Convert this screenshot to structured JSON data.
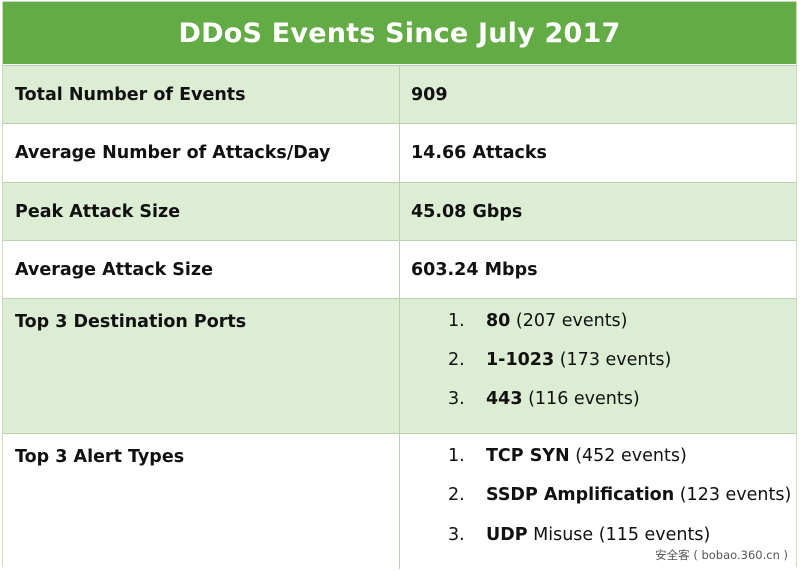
{
  "title": "DDoS Events Since July 2017",
  "rows": [
    {
      "label": "Total Number of Events",
      "value": "909"
    },
    {
      "label": "Average Number of Attacks/Day",
      "value": "14.66 Attacks"
    },
    {
      "label": "Peak Attack Size",
      "value": "45.08 Gbps"
    },
    {
      "label": "Average Attack Size",
      "value": "603.24 Mbps"
    }
  ],
  "ports": {
    "label": "Top 3 Destination Ports",
    "items": [
      {
        "num": "1.",
        "name": "80",
        "detail": " (207 events)"
      },
      {
        "num": "2.",
        "name": "1-1023",
        "detail": " (173 events)"
      },
      {
        "num": "3.",
        "name": "443",
        "detail": " (116 events)"
      }
    ]
  },
  "alerts": {
    "label": "Top 3 Alert Types",
    "items": [
      {
        "num": "1.",
        "name": "TCP SYN",
        "detail": " (452 events)"
      },
      {
        "num": "2.",
        "name": "SSDP Amplification",
        "detail": " (123 events)"
      },
      {
        "num": "3.",
        "name": "UDP",
        "detail": " Misuse (115 events)"
      }
    ]
  },
  "watermark": "安全客 ( bobao.360.cn )",
  "colors": {
    "header_green": "#62ab45",
    "row_shade": "#dcedd3",
    "border": "#b9d2ad"
  }
}
